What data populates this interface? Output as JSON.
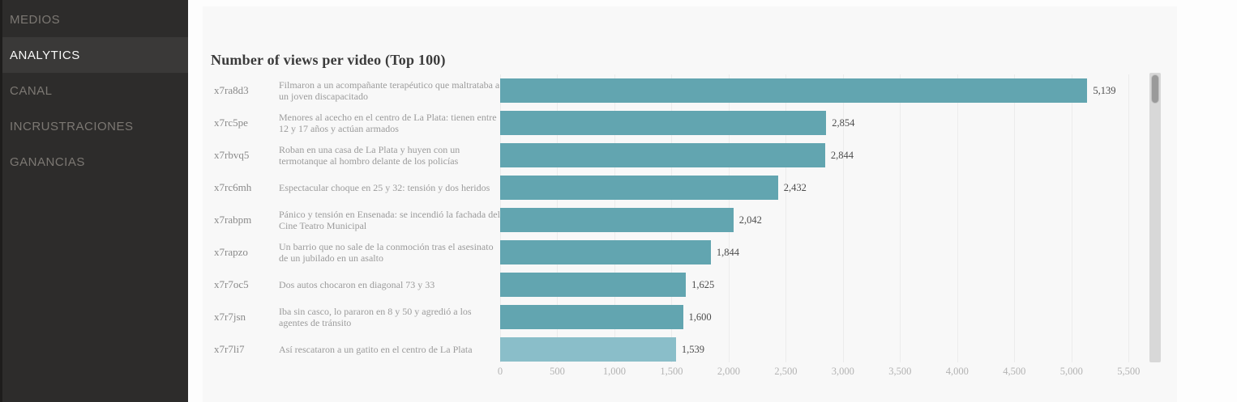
{
  "sidebar": {
    "items": [
      {
        "label": "MEDIOS",
        "active": false
      },
      {
        "label": "ANALYTICS",
        "active": true
      },
      {
        "label": "CANAL",
        "active": false
      },
      {
        "label": "INCRUSTRACIONES",
        "active": false
      },
      {
        "label": "GANANCIAS",
        "active": false
      }
    ]
  },
  "chart_data": {
    "type": "bar",
    "orientation": "horizontal",
    "title": "Number of views per video (Top 100)",
    "categories": [
      "x7ra8d3",
      "x7rc5pe",
      "x7rbvq5",
      "x7rc6mh",
      "x7rabpm",
      "x7rapzo",
      "x7r7oc5",
      "x7r7jsn",
      "x7r7li7"
    ],
    "labels": [
      "Filmaron a un acompañante terapéutico que maltrataba a un joven discapacitado",
      "Menores al acecho en el centro de La Plata: tienen entre 12 y 17 años y actúan armados",
      "Roban en una casa de La Plata y huyen con un termotanque al hombro delante de los policías",
      "Espectacular choque en 25 y 32: tensión y dos heridos",
      "Pánico y tensión en Ensenada: se incendió la fachada del Cine Teatro Municipal",
      "Un barrio que no sale de la conmoción tras el asesinato de un jubilado en un asalto",
      "Dos autos chocaron en diagonal 73 y 33",
      "Iba sin casco, lo pararon en 8 y 50 y agredió a los agentes de tránsito",
      "Así rescataron a un gatito en el centro de La Plata"
    ],
    "values": [
      5139,
      2854,
      2844,
      2432,
      2042,
      1844,
      1625,
      1600,
      1539
    ],
    "value_labels": [
      "5,139",
      "2,854",
      "2,844",
      "2,432",
      "2,042",
      "1,844",
      "1,625",
      "1,600",
      "1,539"
    ],
    "x_ticks": [
      0,
      500,
      1000,
      1500,
      2000,
      2500,
      3000,
      3500,
      4000,
      4500,
      5000,
      5500
    ],
    "x_tick_labels": [
      "0",
      "500",
      "1,000",
      "1,500",
      "2,000",
      "2,500",
      "3,000",
      "3,500",
      "4,000",
      "4,500",
      "5,000",
      "5,500"
    ],
    "xlim": [
      0,
      5640
    ],
    "grid": true,
    "legend": false,
    "bar_color": "#62a5b0",
    "last_bar_color": "#8abec9"
  }
}
